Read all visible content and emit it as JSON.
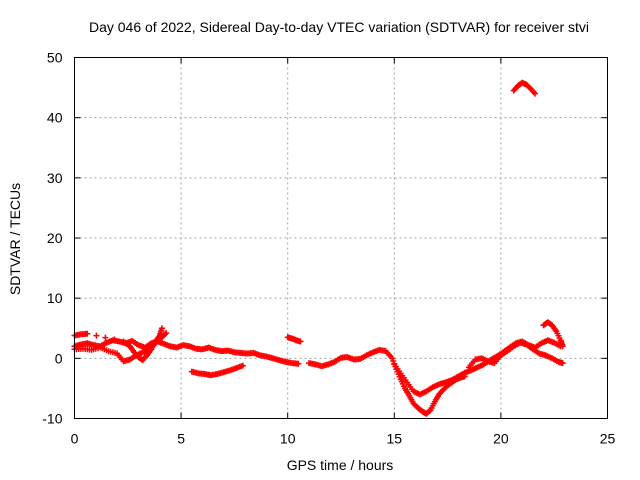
{
  "chart_data": {
    "type": "scatter",
    "title": "Day 046 of 2022, Sidereal Day-to-day VTEC variation (SDTVAR) for receiver stvi",
    "xlabel": "GPS time / hours",
    "ylabel": "SDTVAR / TECUs",
    "xlim": [
      0,
      25
    ],
    "ylim": [
      -10,
      50
    ],
    "xticks": [
      0,
      5,
      10,
      15,
      20,
      25
    ],
    "xtick_labels": [
      "0",
      "5",
      "10",
      "15",
      "20",
      "25"
    ],
    "yticks": [
      -10,
      0,
      10,
      20,
      30,
      40,
      50
    ],
    "ytick_labels": [
      "-10",
      "0",
      "10",
      "20",
      "30",
      "40",
      "50"
    ],
    "grid": true,
    "marker": "plus",
    "color": "#ff0000",
    "series": [
      {
        "name": "arc-main",
        "points": [
          [
            0.0,
            2.0
          ],
          [
            0.3,
            2.3
          ],
          [
            0.6,
            2.5
          ],
          [
            0.9,
            2.2
          ],
          [
            1.2,
            2.0
          ],
          [
            1.5,
            2.6
          ],
          [
            1.8,
            3.0
          ],
          [
            2.1,
            2.8
          ],
          [
            2.4,
            2.5
          ],
          [
            2.7,
            2.9
          ],
          [
            3.0,
            2.2
          ],
          [
            3.3,
            1.8
          ],
          [
            3.6,
            2.5
          ],
          [
            3.9,
            2.8
          ],
          [
            4.2,
            2.4
          ],
          [
            4.5,
            2.0
          ],
          [
            4.8,
            1.8
          ],
          [
            5.1,
            2.2
          ],
          [
            5.4,
            2.0
          ],
          [
            5.7,
            1.6
          ],
          [
            6.0,
            1.5
          ],
          [
            6.3,
            1.8
          ],
          [
            6.6,
            1.4
          ],
          [
            6.9,
            1.2
          ],
          [
            7.2,
            1.3
          ],
          [
            7.5,
            1.0
          ],
          [
            7.8,
            0.9
          ],
          [
            8.1,
            0.8
          ],
          [
            8.4,
            0.9
          ],
          [
            8.7,
            0.5
          ],
          [
            9.0,
            0.3
          ],
          [
            9.3,
            0.0
          ],
          [
            9.6,
            -0.3
          ],
          [
            9.9,
            -0.6
          ],
          [
            10.2,
            -0.8
          ],
          [
            10.5,
            -0.9
          ]
        ]
      },
      {
        "name": "arc-early-lower",
        "points": [
          [
            0.0,
            1.5
          ],
          [
            0.4,
            1.6
          ],
          [
            0.8,
            1.4
          ],
          [
            1.2,
            1.8
          ],
          [
            1.6,
            1.2
          ],
          [
            2.0,
            0.8
          ],
          [
            2.3,
            -0.5
          ],
          [
            2.6,
            -0.2
          ],
          [
            2.9,
            0.5
          ],
          [
            3.2,
            1.0
          ],
          [
            3.5,
            1.5
          ],
          [
            3.8,
            2.5
          ],
          [
            4.1,
            3.5
          ],
          [
            4.3,
            4.2
          ]
        ]
      },
      {
        "name": "arc-early-spike",
        "points": [
          [
            0.0,
            3.8
          ],
          [
            0.3,
            4.0
          ],
          [
            0.6,
            4.1
          ],
          [
            2.3,
            2.8
          ],
          [
            2.6,
            2.0
          ],
          [
            2.8,
            1.0
          ],
          [
            3.0,
            0.2
          ],
          [
            3.2,
            -0.3
          ],
          [
            3.4,
            0.5
          ],
          [
            3.6,
            1.5
          ],
          [
            3.8,
            2.8
          ],
          [
            4.0,
            3.8
          ],
          [
            4.1,
            5.0
          ]
        ]
      },
      {
        "name": "arc-6h-dip",
        "points": [
          [
            5.5,
            -2.2
          ],
          [
            5.8,
            -2.5
          ],
          [
            6.1,
            -2.6
          ],
          [
            6.4,
            -2.8
          ],
          [
            6.7,
            -2.6
          ],
          [
            7.0,
            -2.3
          ],
          [
            7.3,
            -2.0
          ],
          [
            7.6,
            -1.6
          ],
          [
            7.9,
            -1.2
          ]
        ]
      },
      {
        "name": "arc-10h",
        "points": [
          [
            10.0,
            3.5
          ],
          [
            10.2,
            3.3
          ],
          [
            10.4,
            3.0
          ],
          [
            10.6,
            2.8
          ]
        ]
      },
      {
        "name": "arc-midday",
        "points": [
          [
            11.0,
            -0.8
          ],
          [
            11.3,
            -1.0
          ],
          [
            11.6,
            -1.3
          ],
          [
            11.9,
            -1.0
          ],
          [
            12.2,
            -0.6
          ],
          [
            12.5,
            0.1
          ],
          [
            12.8,
            0.2
          ],
          [
            13.1,
            -0.2
          ],
          [
            13.4,
            -0.1
          ],
          [
            13.7,
            0.5
          ],
          [
            14.0,
            1.0
          ],
          [
            14.3,
            1.4
          ],
          [
            14.6,
            1.2
          ],
          [
            14.9,
            0.0
          ],
          [
            15.1,
            -1.8
          ],
          [
            15.3,
            -3.5
          ],
          [
            15.5,
            -5.0
          ],
          [
            15.7,
            -6.2
          ],
          [
            15.9,
            -7.5
          ],
          [
            16.1,
            -8.2
          ],
          [
            16.3,
            -8.8
          ],
          [
            16.5,
            -9.2
          ],
          [
            16.7,
            -8.6
          ],
          [
            16.9,
            -7.2
          ],
          [
            17.1,
            -6.0
          ],
          [
            17.3,
            -5.2
          ],
          [
            17.5,
            -4.5
          ],
          [
            17.7,
            -4.0
          ],
          [
            17.9,
            -3.5
          ],
          [
            18.1,
            -3.2
          ],
          [
            18.3,
            -3.0
          ]
        ]
      },
      {
        "name": "arc-evening",
        "points": [
          [
            15.0,
            -1.0
          ],
          [
            15.3,
            -2.5
          ],
          [
            15.6,
            -4.0
          ],
          [
            15.9,
            -5.5
          ],
          [
            16.2,
            -6.0
          ],
          [
            16.5,
            -5.5
          ],
          [
            16.8,
            -4.8
          ],
          [
            17.1,
            -4.3
          ],
          [
            17.4,
            -4.0
          ],
          [
            17.7,
            -3.6
          ],
          [
            18.0,
            -3.0
          ],
          [
            18.3,
            -2.4
          ],
          [
            18.6,
            -2.0
          ],
          [
            18.9,
            -1.5
          ],
          [
            19.2,
            -1.0
          ],
          [
            19.5,
            -0.3
          ],
          [
            19.8,
            0.3
          ],
          [
            20.1,
            1.0
          ],
          [
            20.4,
            1.8
          ],
          [
            20.7,
            2.5
          ],
          [
            21.0,
            2.8
          ],
          [
            21.3,
            2.2
          ],
          [
            21.6,
            1.8
          ],
          [
            21.9,
            2.5
          ],
          [
            22.2,
            3.0
          ],
          [
            22.5,
            2.6
          ],
          [
            22.8,
            2.0
          ]
        ]
      },
      {
        "name": "arc-late-1",
        "points": [
          [
            18.5,
            -1.5
          ],
          [
            18.8,
            -0.2
          ],
          [
            19.1,
            0.0
          ],
          [
            19.4,
            -0.5
          ],
          [
            19.7,
            -0.8
          ],
          [
            20.0,
            0.5
          ],
          [
            20.3,
            1.2
          ],
          [
            20.6,
            2.0
          ],
          [
            20.9,
            2.6
          ],
          [
            21.2,
            2.3
          ],
          [
            21.5,
            1.5
          ],
          [
            21.8,
            0.8
          ],
          [
            22.1,
            0.5
          ],
          [
            22.4,
            0.0
          ],
          [
            22.7,
            -0.6
          ],
          [
            22.9,
            -0.8
          ]
        ]
      },
      {
        "name": "arc-late-2",
        "points": [
          [
            22.0,
            5.5
          ],
          [
            22.2,
            6.0
          ],
          [
            22.4,
            5.5
          ],
          [
            22.6,
            4.5
          ],
          [
            22.8,
            3.0
          ],
          [
            22.9,
            2.0
          ]
        ]
      },
      {
        "name": "arc-high",
        "points": [
          [
            20.6,
            44.5
          ],
          [
            20.8,
            45.3
          ],
          [
            21.0,
            45.8
          ],
          [
            21.2,
            45.5
          ],
          [
            21.4,
            44.8
          ],
          [
            21.6,
            44.0
          ]
        ]
      }
    ]
  }
}
